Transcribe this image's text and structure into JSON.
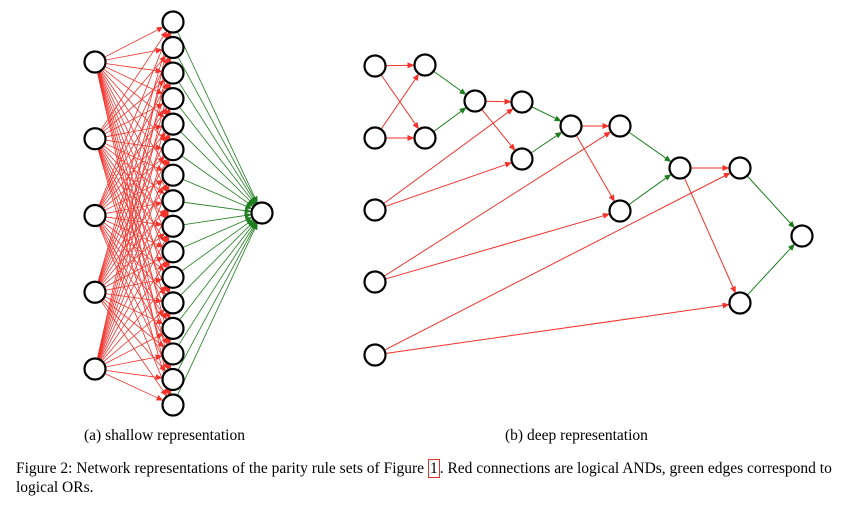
{
  "figure": {
    "colors": {
      "and_edge": "#f2322b",
      "or_edge": "#1e7d1e",
      "node_stroke": "#000000",
      "node_fill": "#ffffff"
    },
    "panel_a": {
      "caption": "(a) shallow representation",
      "layers": [
        5,
        16,
        1
      ],
      "connectivity": {
        "input_to_hidden": "all-to-all (AND)",
        "hidden_to_output": "all-to-one (OR)"
      }
    },
    "panel_b": {
      "caption": "(b) deep representation",
      "nodes": [
        "i1",
        "i2",
        "i3",
        "i4",
        "i5",
        "a1",
        "a2",
        "o1",
        "b1",
        "b2",
        "o2",
        "c1",
        "c2",
        "o3",
        "d1",
        "d2",
        "out"
      ],
      "and_edges": [
        [
          "i1",
          "a1"
        ],
        [
          "i1",
          "a2"
        ],
        [
          "i2",
          "a1"
        ],
        [
          "i2",
          "a2"
        ],
        [
          "o1",
          "b1"
        ],
        [
          "o1",
          "b2"
        ],
        [
          "i3",
          "b1"
        ],
        [
          "i3",
          "b2"
        ],
        [
          "o2",
          "c1"
        ],
        [
          "o2",
          "c2"
        ],
        [
          "i4",
          "c1"
        ],
        [
          "i4",
          "c2"
        ],
        [
          "o3",
          "d1"
        ],
        [
          "o3",
          "d2"
        ],
        [
          "i5",
          "d1"
        ],
        [
          "i5",
          "d2"
        ]
      ],
      "or_edges": [
        [
          "a1",
          "o1"
        ],
        [
          "a2",
          "o1"
        ],
        [
          "b1",
          "o2"
        ],
        [
          "b2",
          "o2"
        ],
        [
          "c1",
          "o3"
        ],
        [
          "c2",
          "o3"
        ],
        [
          "d1",
          "out"
        ],
        [
          "d2",
          "out"
        ]
      ]
    }
  },
  "caption": {
    "prefix": "Figure 2: Network representations of the parity rule sets of Figure ",
    "ref": "1",
    "suffix": ". Red connections are logical ANDs, green edges correspond to logical ORs."
  }
}
